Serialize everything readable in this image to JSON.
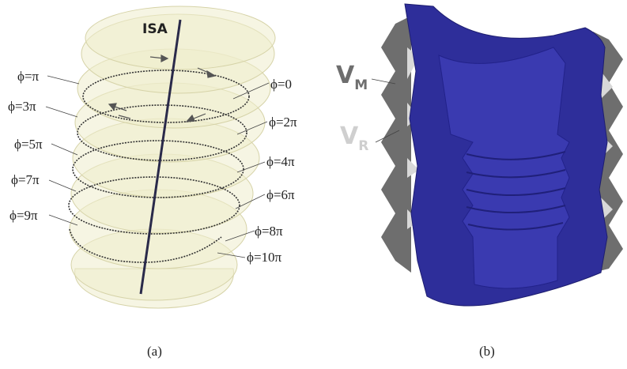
{
  "panel_a": {
    "axis_label": "ISA",
    "left_labels": [
      "ϕ=π",
      "ϕ=3π",
      "ϕ=5π",
      "ϕ=7π",
      "ϕ=9π"
    ],
    "right_labels": [
      "ϕ=0",
      "ϕ=2π",
      "ϕ=4π",
      "ϕ=6π",
      "ϕ=8π",
      "ϕ=10π"
    ],
    "caption": "(a)"
  },
  "panel_b": {
    "labels": [
      {
        "main": "V",
        "sub": "M"
      },
      {
        "main": "V",
        "sub": "R"
      }
    ],
    "caption": "(b)"
  }
}
